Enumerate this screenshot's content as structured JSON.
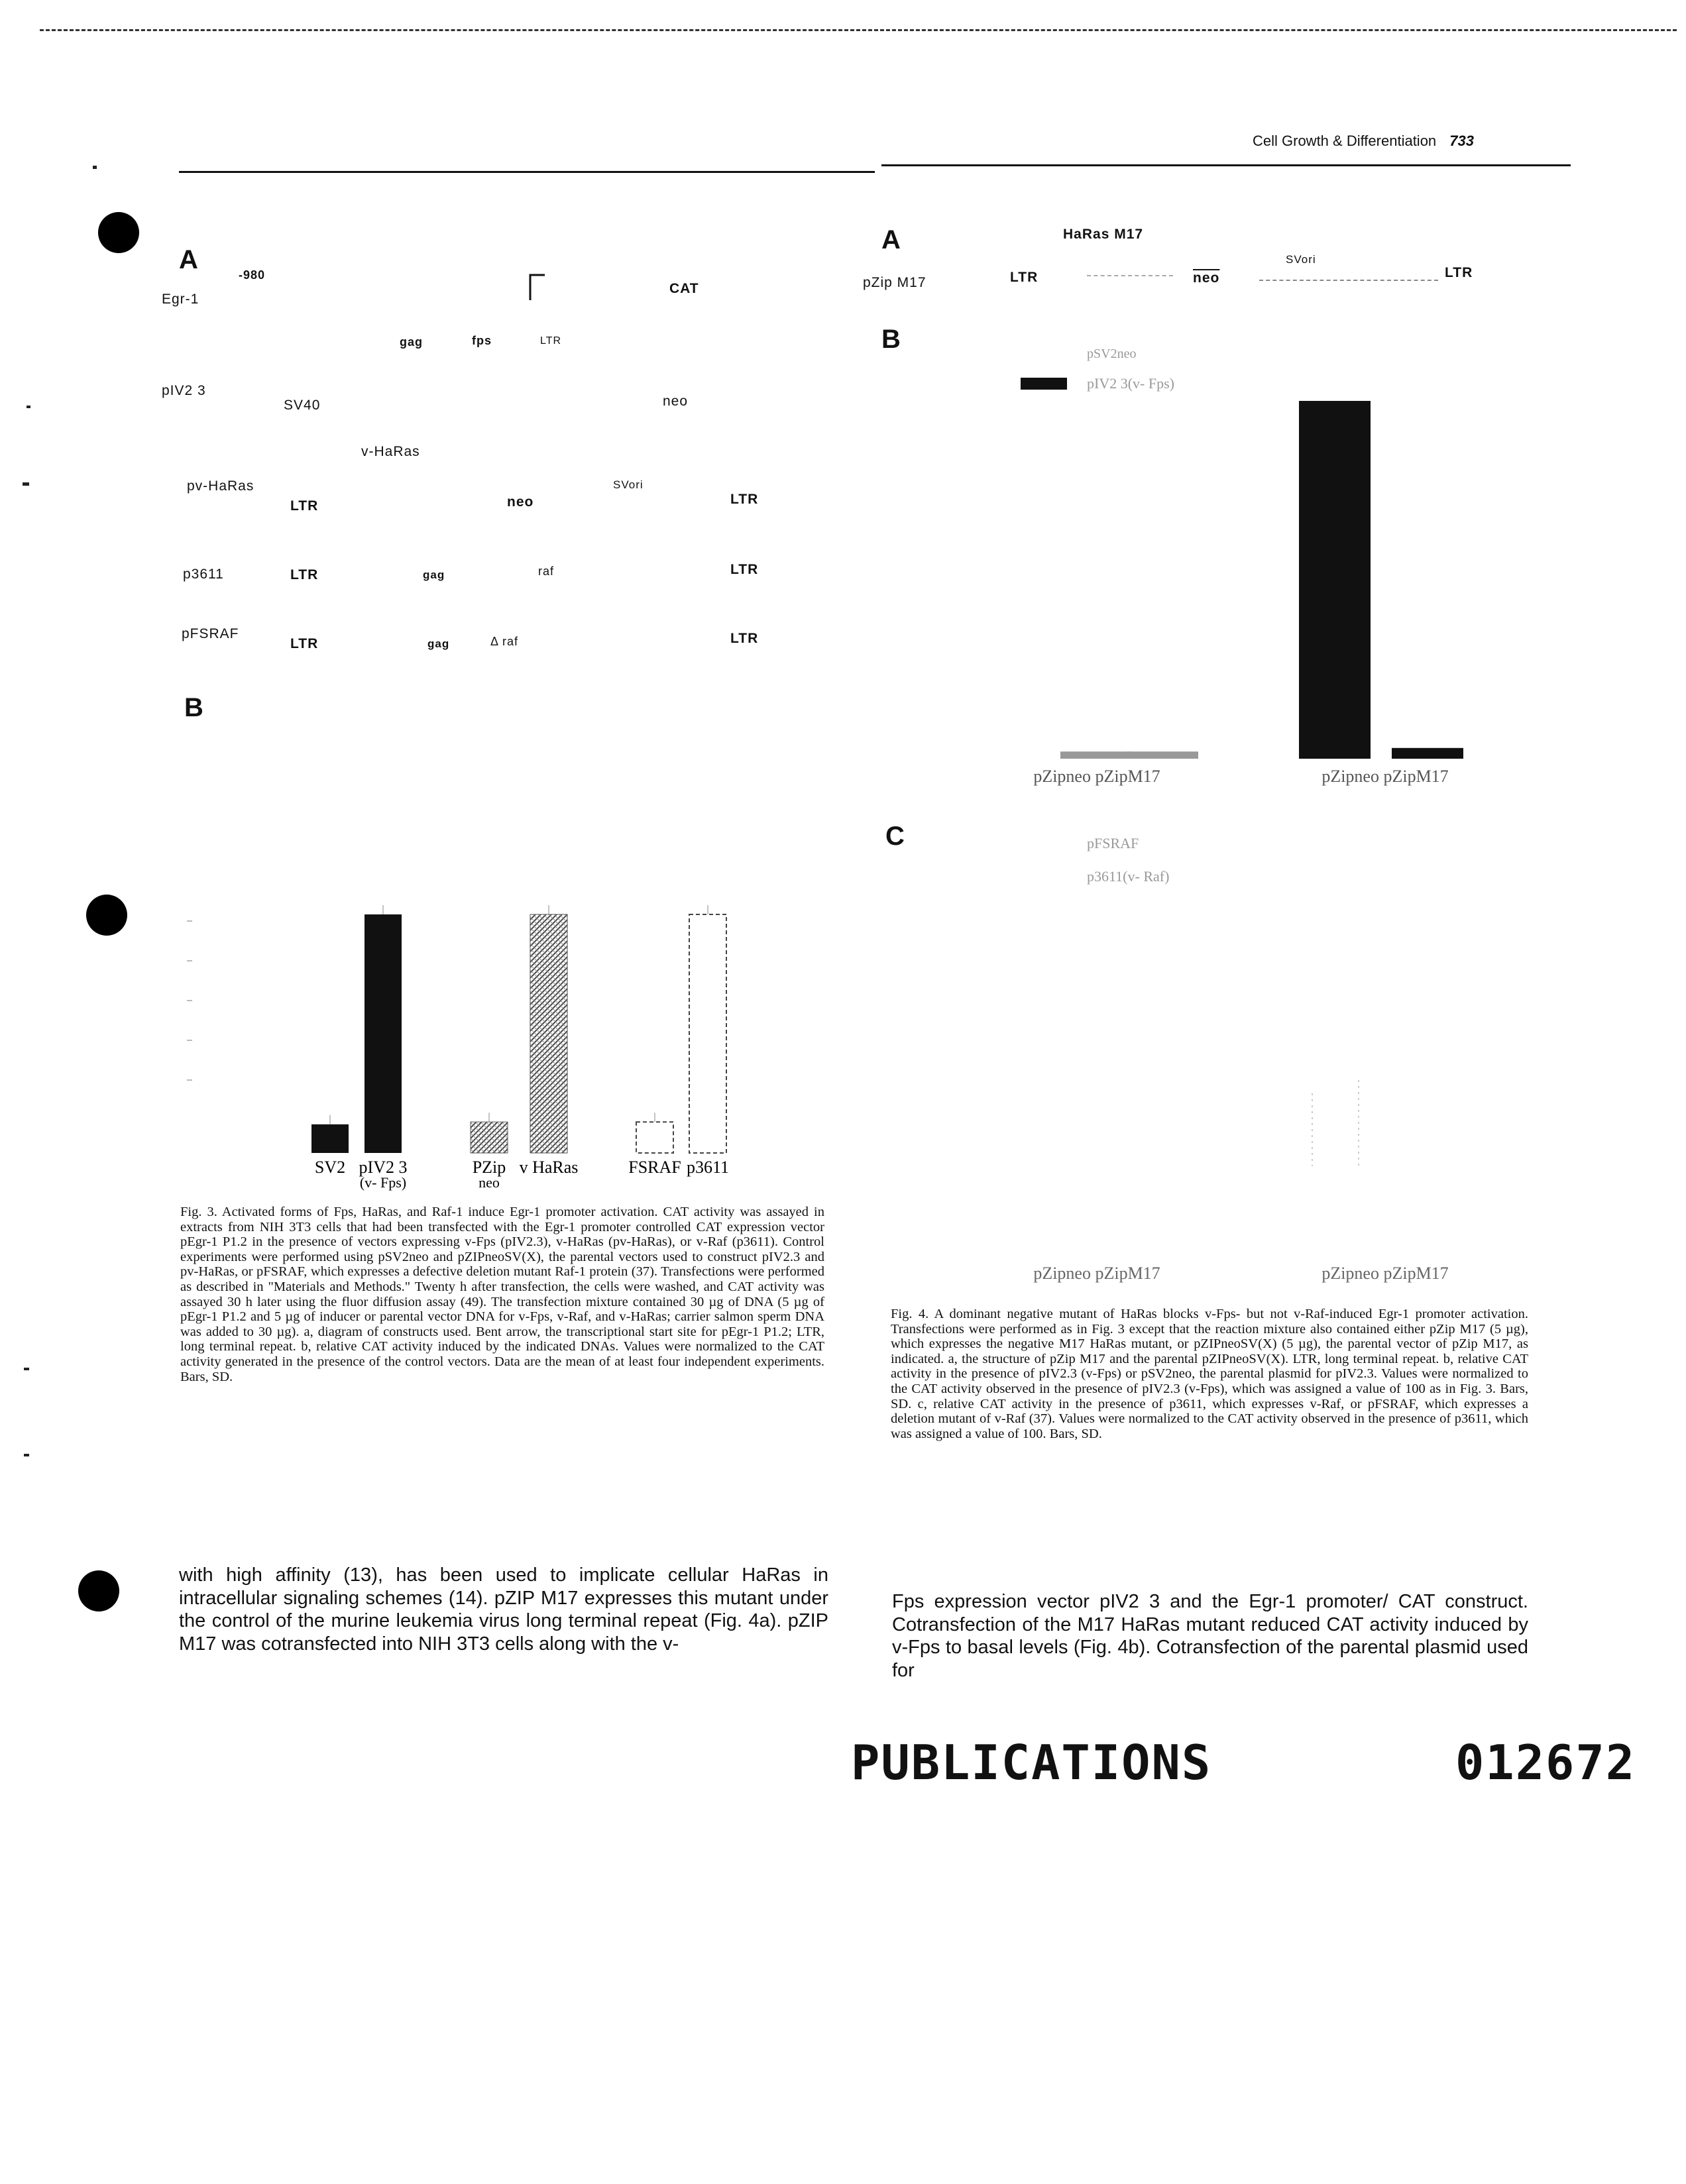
{
  "header": {
    "journal": "Cell Growth & Differentiation",
    "page": "733"
  },
  "fig3": {
    "panel_a": {
      "label": "A",
      "coord": "-980",
      "egr1": "Egr-1",
      "cat": "CAT",
      "gag": "gag",
      "fps": "fps",
      "ltr": "LTR",
      "piv23": "pIV2 3",
      "sv40": "SV40",
      "neo": "neo",
      "vharas": "v-HaRas",
      "pvharas": "pv-HaRas",
      "svori": "SVori",
      "p3611": "p3611",
      "raf": "raf",
      "pfsraf": "pFSRAF",
      "delta_raf": "Δ raf"
    },
    "panel_b_label": "B",
    "caption": "Fig. 3. Activated forms of Fps, HaRas, and Raf-1 induce Egr-1 promoter activation. CAT activity was assayed in extracts from NIH 3T3 cells that had been transfected with the Egr-1 promoter controlled CAT expression vector pEgr-1 P1.2 in the presence of vectors expressing v-Fps (pIV2.3), v-HaRas (pv-HaRas), or v-Raf (p3611). Control experiments were performed using pSV2neo and pZIPneoSV(X), the parental vectors used to construct pIV2.3 and pv-HaRas, or pFSRAF, which expresses a defective deletion mutant Raf-1 protein (37). Transfections were performed as described in \"Materials and Methods.\" Twenty h after transfection, the cells were washed, and CAT activity was assayed 30 h later using the fluor diffusion assay (49). The transfection mixture contained 30 µg of DNA (5 µg of pEgr-1 P1.2 and 5 µg of inducer or parental vector DNA for v-Fps, v-Raf, and v-HaRas; carrier salmon sperm DNA was added to 30 µg). a, diagram of constructs used. Bent arrow, the transcriptional start site for pEgr-1 P1.2; LTR, long terminal repeat. b, relative CAT activity induced by the indicated DNAs. Values were normalized to the CAT activity generated in the presence of the control vectors. Data are the mean of at least four independent experiments. Bars, SD."
  },
  "fig4": {
    "panel_a": {
      "label": "A",
      "haras_m17": "HaRas M17",
      "pzip_m17": "pZip M17",
      "ltr": "LTR",
      "neo": "neo",
      "svori": "SVori"
    },
    "panel_b_label": "B",
    "panel_c_label": "C",
    "caption": "Fig. 4. A dominant negative mutant of HaRas blocks v-Fps- but not v-Raf-induced Egr-1 promoter activation. Transfections were performed as in Fig. 3 except that the reaction mixture also contained either pZip M17 (5 µg), which expresses the negative M17 HaRas mutant, or pZIPneoSV(X) (5 µg), the parental vector of pZip M17, as indicated. a, the structure of pZip M17 and the parental pZIPneoSV(X). LTR, long terminal repeat. b, relative CAT activity in the presence of pIV2.3 (v-Fps) or pSV2neo, the parental plasmid for pIV2.3. Values were normalized to the CAT activity observed in the presence of pIV2.3 (v-Fps), which was assigned a value of 100 as in Fig. 3. Bars, SD. c, relative CAT activity in the presence of p3611, which expresses v-Raf, or pFSRAF, which expresses a deletion mutant of v-Raf (37). Values were normalized to the CAT activity observed in the presence of p3611, which was assigned a value of 100. Bars, SD."
  },
  "body_left": "with high affinity (13), has been used to implicate cellular HaRas in intracellular signaling schemes (14). pZIP M17 expresses this mutant under the control of the murine leukemia virus long terminal repeat (Fig. 4a). pZIP M17 was cotransfected into NIH 3T3 cells along with the v-",
  "body_right": "Fps expression vector pIV2 3 and the Egr-1 promoter/ CAT construct. Cotransfection of the M17 HaRas mutant reduced CAT activity induced by v-Fps to basal levels (Fig. 4b). Cotransfection of the parental plasmid used for",
  "stamp": {
    "word": "PUBLICATIONS",
    "number": "012672"
  },
  "chart_data": [
    {
      "type": "bar",
      "title": "Fig. 3b relative CAT activity",
      "categories": [
        "pSV2neo",
        "pIV2 3 (v-Fps)",
        "pZip neo",
        "v-HaRas",
        "pFSRAF",
        "p3611"
      ],
      "tick_labels": [
        "SV2",
        "pIV2 3",
        "PZip",
        "v HaRas",
        "FSRAF",
        "p3611"
      ],
      "sub_labels": [
        "",
        "(v- Fps)",
        "neo",
        "",
        "",
        ""
      ],
      "values": [
        12,
        100,
        13,
        100,
        13,
        100
      ],
      "fills": [
        "solid",
        "solid",
        "hatched",
        "hatched",
        "outline",
        "outline"
      ],
      "ylim": [
        0,
        130
      ]
    },
    {
      "type": "bar",
      "title": "Fig. 4b relative CAT activity",
      "categories": [
        "pZipneo",
        "pZipM17",
        "pZipneo",
        "pZipM17"
      ],
      "group_labels": [
        "pZipneo pZipM17",
        "pZipneo pZipM17"
      ],
      "legend": [
        "pSV2neo",
        "pIV2 3(v- Fps)"
      ],
      "series": [
        {
          "name": "pSV2neo",
          "values": [
            2,
            2,
            null,
            null
          ]
        },
        {
          "name": "pIV2 3(v- Fps)",
          "values": [
            null,
            null,
            100,
            3
          ]
        }
      ],
      "ylim": [
        0,
        105
      ]
    },
    {
      "type": "bar",
      "title": "Fig. 4c relative CAT activity",
      "categories": [
        "pZipneo",
        "pZipM17",
        "pZipneo",
        "pZipM17"
      ],
      "group_labels": [
        "pZipneo pZipM17",
        "pZipneo pZipM17"
      ],
      "legend": [
        "pFSRAF",
        "p3611(v- Raf)"
      ],
      "ylim": [
        0,
        105
      ]
    }
  ]
}
